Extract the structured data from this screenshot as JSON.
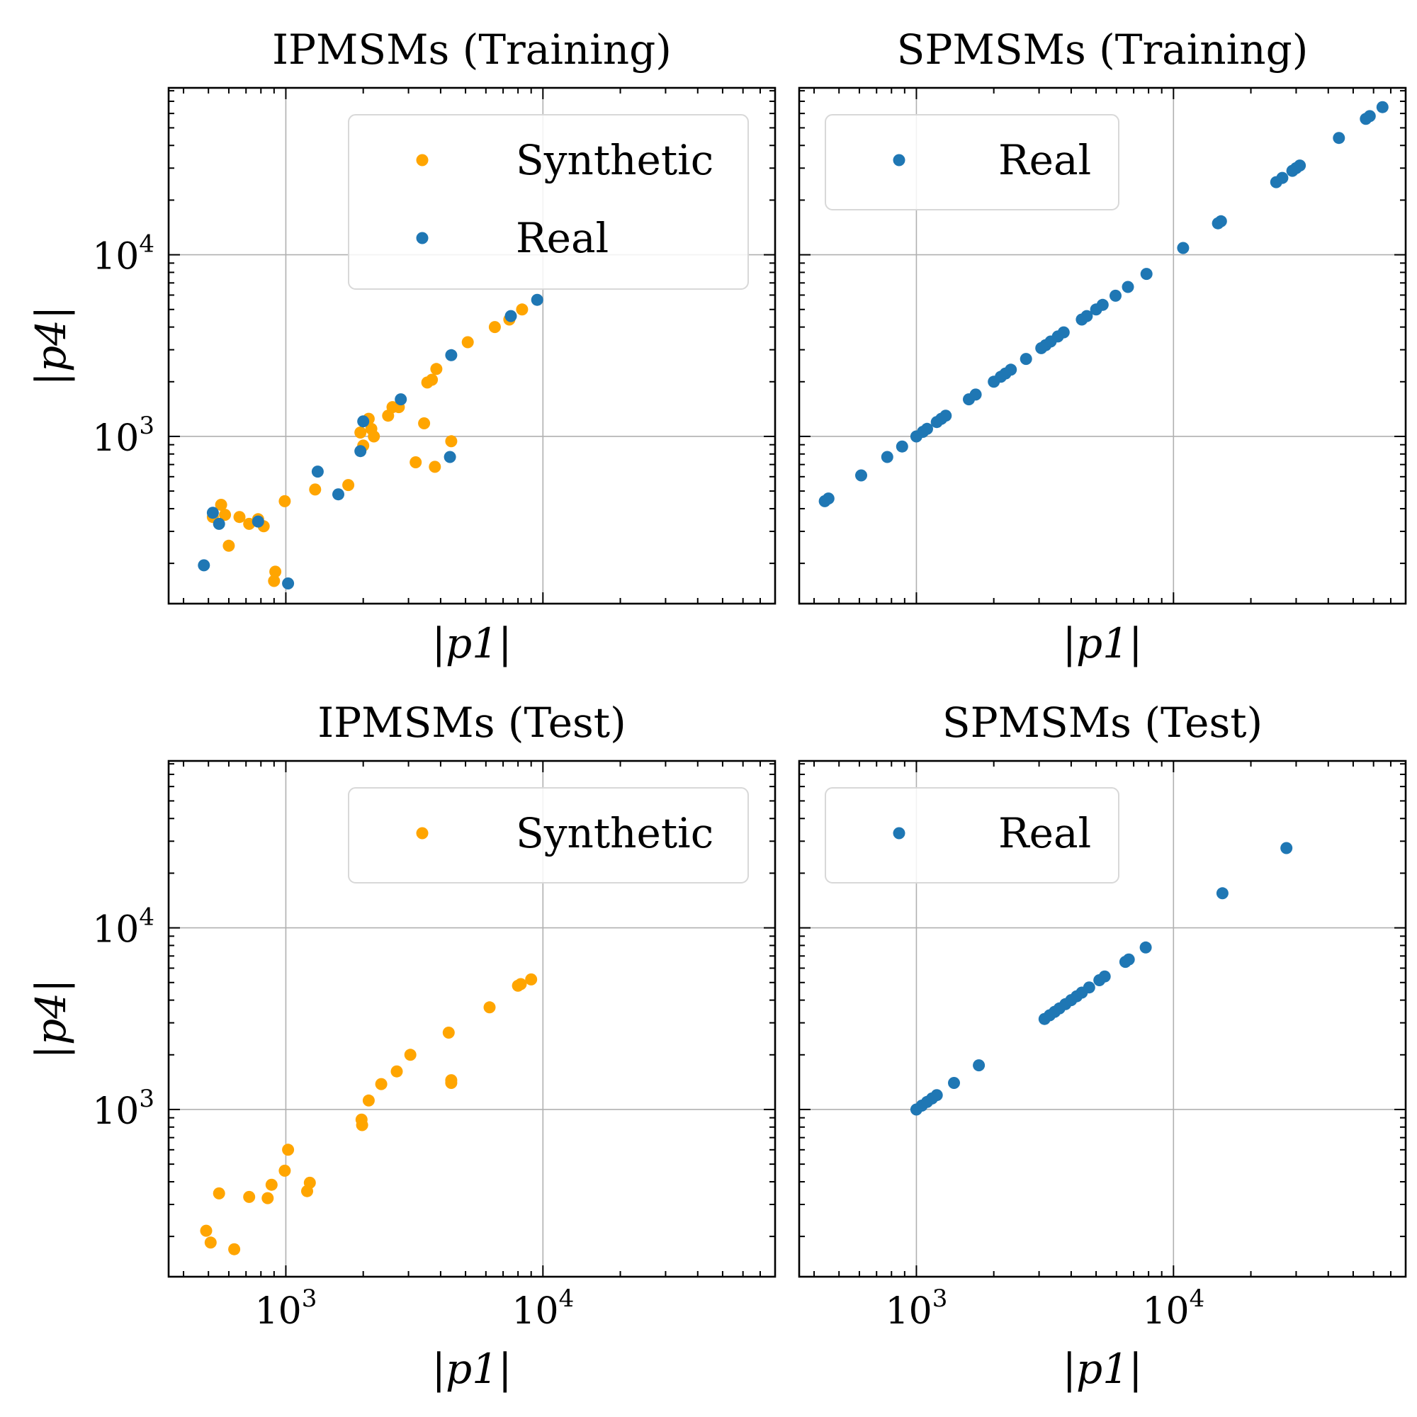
{
  "colors": {
    "synthetic": "#FFA500",
    "real": "#1F77B4",
    "grid": "#b0b0b0",
    "legend_border": "#d8d8d8"
  },
  "chart_data": [
    {
      "type": "scatter",
      "title": "IPMSMs (Training)",
      "xlabel": "|p1|",
      "ylabel": "|p4|",
      "xscale": "log",
      "yscale": "log",
      "xlim": [
        350,
        80000
      ],
      "ylim": [
        120,
        83000
      ],
      "grid": true,
      "legend_position": "upper right",
      "series": [
        {
          "name": "Synthetic",
          "color": "#FFA500",
          "x": [
            520,
            560,
            580,
            600,
            660,
            720,
            780,
            820,
            900,
            910,
            990,
            1300,
            1750,
            1950,
            2000,
            2100,
            2150,
            2200,
            2500,
            2600,
            2750,
            3200,
            3450,
            3550,
            3700,
            3800,
            3850,
            4400,
            5100,
            6500,
            7400,
            8300
          ],
          "y": [
            360,
            420,
            370,
            250,
            360,
            330,
            350,
            320,
            160,
            180,
            440,
            510,
            540,
            1050,
            890,
            1250,
            1100,
            1000,
            1300,
            1450,
            1450,
            720,
            1180,
            1980,
            2050,
            680,
            2350,
            940,
            3300,
            4000,
            4400,
            5000
          ]
        },
        {
          "name": "Real",
          "color": "#1F77B4",
          "x": [
            480,
            520,
            550,
            780,
            1020,
            1330,
            1600,
            1950,
            2000,
            2800,
            4350,
            4400,
            7500,
            9500
          ],
          "y": [
            195,
            380,
            330,
            340,
            155,
            640,
            480,
            830,
            1210,
            1600,
            770,
            2800,
            4600,
            5650
          ]
        }
      ]
    },
    {
      "type": "scatter",
      "title": "SPMSMs (Training)",
      "xlabel": "|p1|",
      "ylabel": "",
      "xscale": "log",
      "yscale": "log",
      "xlim": [
        350,
        80000
      ],
      "ylim": [
        120,
        83000
      ],
      "grid": true,
      "legend_position": "upper left",
      "series": [
        {
          "name": "Real",
          "color": "#1F77B4",
          "x": [
            440,
            455,
            610,
            770,
            880,
            1000,
            1060,
            1100,
            1200,
            1250,
            1300,
            1600,
            1700,
            2000,
            2130,
            2220,
            2330,
            2670,
            3060,
            3180,
            3330,
            3550,
            3740,
            4400,
            4600,
            5000,
            5300,
            5950,
            6650,
            7850,
            10900,
            14900,
            15300,
            25100,
            26500,
            29000,
            30000,
            31000,
            44000,
            56000,
            58000,
            65000
          ],
          "y": [
            440,
            455,
            610,
            770,
            880,
            1000,
            1060,
            1100,
            1200,
            1250,
            1300,
            1600,
            1700,
            2000,
            2130,
            2220,
            2330,
            2670,
            3060,
            3180,
            3330,
            3550,
            3740,
            4400,
            4600,
            5000,
            5300,
            5950,
            6650,
            7850,
            10900,
            14900,
            15300,
            25100,
            26500,
            29000,
            30000,
            31000,
            44000,
            56000,
            58000,
            65000
          ]
        }
      ]
    },
    {
      "type": "scatter",
      "title": "IPMSMs (Test)",
      "xlabel": "|p1|",
      "ylabel": "|p4|",
      "xscale": "log",
      "yscale": "log",
      "xlim": [
        350,
        80000
      ],
      "ylim": [
        120,
        83000
      ],
      "grid": true,
      "legend_position": "upper right",
      "series": [
        {
          "name": "Synthetic",
          "color": "#FFA500",
          "x": [
            490,
            510,
            550,
            630,
            720,
            850,
            880,
            990,
            1020,
            1210,
            1240,
            1970,
            1980,
            2100,
            2350,
            2700,
            3050,
            4300,
            4400,
            4400,
            6200,
            8000,
            8200,
            9000
          ],
          "y": [
            215,
            185,
            345,
            170,
            330,
            325,
            385,
            460,
            600,
            355,
            395,
            880,
            820,
            1120,
            1380,
            1620,
            2000,
            2650,
            1450,
            1400,
            3650,
            4800,
            4900,
            5200
          ]
        }
      ]
    },
    {
      "type": "scatter",
      "title": "SPMSMs (Test)",
      "xlabel": "|p1|",
      "ylabel": "",
      "xscale": "log",
      "yscale": "log",
      "xlim": [
        350,
        80000
      ],
      "ylim": [
        120,
        83000
      ],
      "grid": true,
      "legend_position": "upper left",
      "series": [
        {
          "name": "Real",
          "color": "#1F77B4",
          "x": [
            1000,
            1050,
            1100,
            1150,
            1200,
            1400,
            1750,
            3150,
            3300,
            3450,
            3600,
            3800,
            4000,
            4200,
            4400,
            4700,
            5150,
            5400,
            6500,
            6700,
            7800,
            15500,
            27500
          ],
          "y": [
            1000,
            1050,
            1100,
            1150,
            1200,
            1400,
            1750,
            3150,
            3300,
            3450,
            3600,
            3800,
            4000,
            4200,
            4400,
            4700,
            5150,
            5400,
            6500,
            6700,
            7800,
            15500,
            27500
          ]
        }
      ]
    }
  ],
  "ticks": {
    "x_major": [
      {
        "value": 1000,
        "base": "10",
        "exp": "3"
      },
      {
        "value": 10000,
        "base": "10",
        "exp": "4"
      }
    ],
    "y_major": [
      {
        "value": 1000,
        "base": "10",
        "exp": "3"
      },
      {
        "value": 10000,
        "base": "10",
        "exp": "4"
      }
    ]
  }
}
